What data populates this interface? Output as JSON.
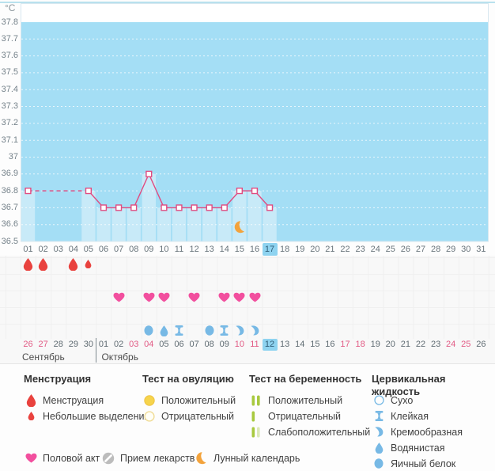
{
  "chart_data": {
    "type": "line",
    "unit": "°C",
    "y_min": 36.5,
    "y_max": 37.8,
    "y_step": 0.1,
    "days_total": 31,
    "series": [
      {
        "name": "basal-temperature",
        "points": [
          {
            "day": 1,
            "temp": 36.8
          },
          {
            "day": 5,
            "temp": 36.8
          },
          {
            "day": 6,
            "temp": 36.7
          },
          {
            "day": 7,
            "temp": 36.7
          },
          {
            "day": 8,
            "temp": 36.7
          },
          {
            "day": 9,
            "temp": 36.9
          },
          {
            "day": 10,
            "temp": 36.7
          },
          {
            "day": 11,
            "temp": 36.7
          },
          {
            "day": 12,
            "temp": 36.7
          },
          {
            "day": 13,
            "temp": 36.7
          },
          {
            "day": 14,
            "temp": 36.7
          },
          {
            "day": 15,
            "temp": 36.8
          },
          {
            "day": 16,
            "temp": 36.8
          },
          {
            "day": 17,
            "temp": 36.7
          }
        ]
      }
    ],
    "dashed_segment": {
      "from_day": 1,
      "to_day": 5,
      "temp": 36.8
    },
    "current_day": 17,
    "moon_day": 15,
    "grid": "dotted-white",
    "legend_position": "bottom"
  },
  "day_labels": [
    "01",
    "02",
    "03",
    "04",
    "05",
    "06",
    "07",
    "08",
    "09",
    "10",
    "11",
    "12",
    "13",
    "14",
    "15",
    "16",
    "17",
    "18",
    "19",
    "20",
    "21",
    "22",
    "23",
    "24",
    "25",
    "26",
    "27",
    "28",
    "29",
    "30",
    "31"
  ],
  "rows": [
    {
      "name": "menstruation",
      "icons": [
        {
          "day": 1,
          "type": "drop-large"
        },
        {
          "day": 2,
          "type": "drop-large"
        },
        {
          "day": 4,
          "type": "drop-large"
        },
        {
          "day": 5,
          "type": "drop-small"
        }
      ]
    },
    {
      "name": "ovulation-test",
      "icons": []
    },
    {
      "name": "intercourse",
      "icons": [
        {
          "day": 7,
          "type": "heart"
        },
        {
          "day": 9,
          "type": "heart"
        },
        {
          "day": 10,
          "type": "heart"
        },
        {
          "day": 12,
          "type": "heart"
        },
        {
          "day": 14,
          "type": "heart"
        },
        {
          "day": 15,
          "type": "heart"
        },
        {
          "day": 16,
          "type": "heart"
        }
      ]
    },
    {
      "name": "medication",
      "icons": []
    },
    {
      "name": "cervical-fluid",
      "icons": [
        {
          "day": 9,
          "type": "eggwhite"
        },
        {
          "day": 10,
          "type": "watery"
        },
        {
          "day": 11,
          "type": "sticky"
        },
        {
          "day": 13,
          "type": "eggwhite"
        },
        {
          "day": 14,
          "type": "sticky"
        },
        {
          "day": 15,
          "type": "creamy"
        },
        {
          "day": 16,
          "type": "creamy"
        }
      ]
    }
  ],
  "calendar": {
    "sections": [
      {
        "month": "Сентябрь",
        "labels": [
          "26",
          "27",
          "28",
          "29",
          "30"
        ]
      },
      {
        "month": "Октябрь",
        "labels": [
          "01",
          "02",
          "03",
          "04",
          "05",
          "06",
          "07",
          "08",
          "09",
          "10",
          "11",
          "12",
          "13",
          "14",
          "15",
          "16",
          "17",
          "18",
          "19",
          "20",
          "21",
          "22",
          "23",
          "24",
          "25",
          "26"
        ]
      }
    ],
    "weekend_cycle_days": [
      1,
      2,
      8,
      9,
      15,
      16,
      22,
      23,
      29,
      30
    ],
    "today_cycle_day": 17
  },
  "legend": {
    "groups": [
      {
        "name": "Менструация",
        "items": [
          {
            "icon": "drop-large",
            "label": "Менструация"
          },
          {
            "icon": "drop-small",
            "label": "Небольшие выделения"
          }
        ]
      },
      {
        "name": "Тест на овуляцию",
        "items": [
          {
            "icon": "ovulation-positive",
            "label": "Положительный"
          },
          {
            "icon": "ovulation-negative",
            "label": "Отрицательный"
          }
        ]
      },
      {
        "name": "Тест на беременность",
        "items": [
          {
            "icon": "pregnancy-positive",
            "label": "Положительный"
          },
          {
            "icon": "pregnancy-negative",
            "label": "Отрицательный"
          },
          {
            "icon": "pregnancy-weak",
            "label": "Слабоположительный"
          }
        ]
      },
      {
        "name": "Цервикальная жидкость",
        "items": [
          {
            "icon": "dry",
            "label": "Сухо"
          },
          {
            "icon": "sticky",
            "label": "Клейкая"
          },
          {
            "icon": "creamy",
            "label": "Кремообразная"
          },
          {
            "icon": "watery",
            "label": "Водянистая"
          },
          {
            "icon": "eggwhite",
            "label": "Яичный белок"
          }
        ]
      }
    ],
    "extra_items": [
      {
        "icon": "heart",
        "label": "Половой акт"
      },
      {
        "icon": "pill",
        "label": "Прием лекарств"
      },
      {
        "icon": "moon",
        "label": "Лунный календарь"
      }
    ]
  },
  "colors": {
    "top_border": "#b9e1ee",
    "plot_background": "#a4def5",
    "plot_column": "#c8eaf8",
    "plot_border": "#d8e8f0",
    "grid_line": "#ffffff",
    "temp_line": "#e14b80",
    "marker_fill": "#ffffff",
    "menstruation_red": "#e9423e",
    "heart_pink": "#f24f9e",
    "fluid_blue": "#77b9e5",
    "moon_orange": "#f3a33c",
    "pill_gray": "#bcbcbc",
    "test_green": "#a8c93f",
    "test_green_pale": "#dce9b8",
    "ovulation_yellow": "#f6d44c",
    "today_highlight": "#8ed3f0",
    "today_text": "#2e5d77",
    "weekend_red": "#e25a84"
  }
}
